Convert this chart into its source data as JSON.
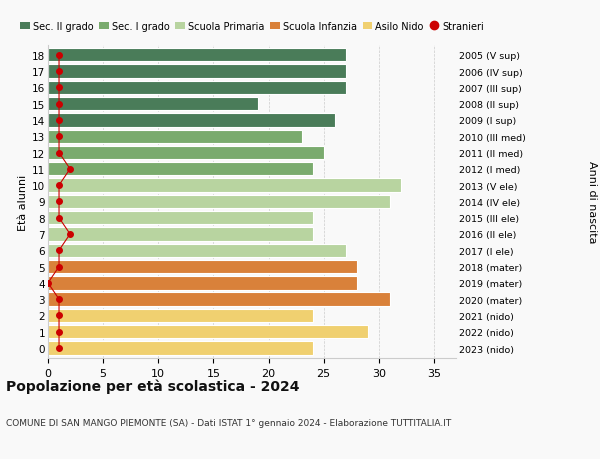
{
  "ages": [
    18,
    17,
    16,
    15,
    14,
    13,
    12,
    11,
    10,
    9,
    8,
    7,
    6,
    5,
    4,
    3,
    2,
    1,
    0
  ],
  "years_labels": [
    "2005 (V sup)",
    "2006 (IV sup)",
    "2007 (III sup)",
    "2008 (II sup)",
    "2009 (I sup)",
    "2010 (III med)",
    "2011 (II med)",
    "2012 (I med)",
    "2013 (V ele)",
    "2014 (IV ele)",
    "2015 (III ele)",
    "2016 (II ele)",
    "2017 (I ele)",
    "2018 (mater)",
    "2019 (mater)",
    "2020 (mater)",
    "2021 (nido)",
    "2022 (nido)",
    "2023 (nido)"
  ],
  "bar_values": [
    27,
    27,
    27,
    19,
    26,
    23,
    25,
    24,
    32,
    31,
    24,
    24,
    27,
    28,
    28,
    31,
    24,
    29,
    24
  ],
  "stranieri_values": [
    1,
    1,
    1,
    1,
    1,
    1,
    1,
    2,
    1,
    1,
    1,
    2,
    1,
    1,
    0,
    1,
    1,
    1,
    1
  ],
  "bar_colors": [
    "#4a7c59",
    "#4a7c59",
    "#4a7c59",
    "#4a7c59",
    "#4a7c59",
    "#7aab6e",
    "#7aab6e",
    "#7aab6e",
    "#b8d4a0",
    "#b8d4a0",
    "#b8d4a0",
    "#b8d4a0",
    "#b8d4a0",
    "#d9813a",
    "#d9813a",
    "#d9813a",
    "#f0d070",
    "#f0d070",
    "#f0d070"
  ],
  "legend_labels": [
    "Sec. II grado",
    "Sec. I grado",
    "Scuola Primaria",
    "Scuola Infanzia",
    "Asilo Nido",
    "Stranieri"
  ],
  "legend_colors": [
    "#4a7c59",
    "#7aab6e",
    "#b8d4a0",
    "#d9813a",
    "#f0d070",
    "#cc0000"
  ],
  "title": "Popolazione per età scolastica - 2024",
  "subtitle": "COMUNE DI SAN MANGO PIEMONTE (SA) - Dati ISTAT 1° gennaio 2024 - Elaborazione TUTTITALIA.IT",
  "ylabel_left": "Età alunni",
  "ylabel_right": "Anni di nascita",
  "xlim": [
    0,
    37
  ],
  "background_color": "#f9f9f9",
  "bar_edge_color": "#ffffff",
  "stranieri_color": "#cc0000",
  "grid_color": "#cccccc"
}
